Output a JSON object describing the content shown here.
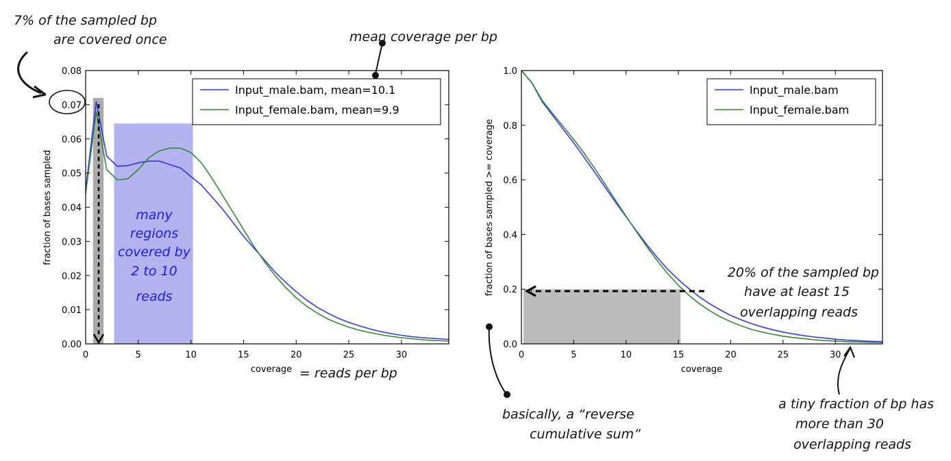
{
  "chart_data": [
    {
      "type": "line",
      "xlabel": "coverage",
      "ylabel": "fraction of bases sampled",
      "xlim": [
        0,
        34.5
      ],
      "ylim": [
        0,
        0.08
      ],
      "xticks": [
        "0",
        "5",
        "10",
        "15",
        "20",
        "25",
        "30"
      ],
      "yticks": [
        "0.00",
        "0.01",
        "0.02",
        "0.03",
        "0.04",
        "0.05",
        "0.06",
        "0.07",
        "0.08"
      ],
      "legend_position": "top-right",
      "series": [
        {
          "name": "Input_male.bam, mean=10.1",
          "color": "#3333ff",
          "x": [
            0,
            1,
            2,
            3,
            4,
            5,
            6,
            7,
            8,
            9,
            10,
            11,
            12,
            13,
            14,
            15,
            16,
            17,
            18,
            19,
            20,
            21,
            22,
            23,
            24,
            25,
            26,
            27,
            28,
            29,
            30,
            31,
            32,
            33,
            34.5
          ],
          "y": [
            0.045,
            0.071,
            0.055,
            0.052,
            0.0522,
            0.053,
            0.0535,
            0.0535,
            0.0525,
            0.0515,
            0.049,
            0.0465,
            0.043,
            0.0395,
            0.0355,
            0.0315,
            0.028,
            0.0245,
            0.021,
            0.018,
            0.0153,
            0.0128,
            0.0107,
            0.009,
            0.0075,
            0.0063,
            0.0053,
            0.0044,
            0.0036,
            0.003,
            0.0025,
            0.0021,
            0.0018,
            0.0016,
            0.0013
          ]
        },
        {
          "name": "Input_female.bam, mean=9.9",
          "color": "#2e8b2e",
          "x": [
            0,
            1,
            2,
            3,
            4,
            5,
            6,
            7,
            8,
            9,
            10,
            11,
            12,
            13,
            14,
            15,
            16,
            17,
            18,
            19,
            20,
            21,
            22,
            23,
            24,
            25,
            26,
            27,
            28,
            29,
            30,
            31,
            32,
            33,
            34.5
          ],
          "y": [
            0.044,
            0.068,
            0.051,
            0.048,
            0.0483,
            0.051,
            0.0545,
            0.0565,
            0.0573,
            0.0573,
            0.056,
            0.053,
            0.0485,
            0.0435,
            0.0385,
            0.0335,
            0.0285,
            0.024,
            0.02,
            0.0165,
            0.0135,
            0.011,
            0.009,
            0.0073,
            0.006,
            0.0049,
            0.004,
            0.0033,
            0.0027,
            0.0022,
            0.0018,
            0.0015,
            0.0012,
            0.001,
            0.0008
          ]
        }
      ],
      "highlights": [
        {
          "color": "#aaaaaa",
          "x_range": [
            0.7,
            1.7
          ],
          "y_range": [
            0,
            0.072
          ]
        },
        {
          "color": "#b3b3f0",
          "x_range": [
            2.7,
            10.2
          ],
          "y_range": [
            0,
            0.0645
          ]
        }
      ],
      "annotations": {
        "top_left": [
          "7% of the sampled bp",
          "are covered once"
        ],
        "mean_label": "mean coverage per bp",
        "blue_box": [
          "many",
          "regions",
          "covered by",
          "2 to 10",
          "reads"
        ],
        "xlabel_suffix": "= reads per bp"
      }
    },
    {
      "type": "line",
      "xlabel": "coverage",
      "ylabel": "fraction of bases sampled >= coverage",
      "xlim": [
        0,
        34.5
      ],
      "ylim": [
        0,
        1.0
      ],
      "xticks": [
        "0",
        "5",
        "10",
        "15",
        "20",
        "25",
        "30"
      ],
      "yticks": [
        "0.0",
        "0.2",
        "0.4",
        "0.6",
        "0.8",
        "1.0"
      ],
      "legend_position": "top-right",
      "series": [
        {
          "name": "Input_male.bam",
          "color": "#3333ff",
          "x": [
            0,
            1,
            2,
            3,
            4,
            5,
            6,
            7,
            8,
            9,
            10,
            11,
            12,
            13,
            14,
            15,
            16,
            17,
            18,
            19,
            20,
            21,
            22,
            23,
            24,
            25,
            26,
            27,
            28,
            29,
            30,
            31,
            32,
            33,
            34.5
          ],
          "y": [
            1.0,
            0.955,
            0.885,
            0.835,
            0.785,
            0.735,
            0.682,
            0.628,
            0.573,
            0.518,
            0.465,
            0.413,
            0.362,
            0.315,
            0.272,
            0.235,
            0.202,
            0.172,
            0.146,
            0.124,
            0.104,
            0.088,
            0.074,
            0.062,
            0.052,
            0.043,
            0.036,
            0.03,
            0.025,
            0.021,
            0.017,
            0.014,
            0.012,
            0.01,
            0.008
          ]
        },
        {
          "name": "Input_female.bam",
          "color": "#2e8b2e",
          "x": [
            0,
            1,
            2,
            3,
            4,
            5,
            6,
            7,
            8,
            9,
            10,
            11,
            12,
            13,
            14,
            15,
            16,
            17,
            18,
            19,
            20,
            21,
            22,
            23,
            24,
            25,
            26,
            27,
            28,
            29,
            30,
            31,
            32,
            33,
            34.5
          ],
          "y": [
            1.0,
            0.956,
            0.89,
            0.842,
            0.795,
            0.748,
            0.697,
            0.642,
            0.584,
            0.525,
            0.467,
            0.41,
            0.355,
            0.303,
            0.256,
            0.214,
            0.178,
            0.147,
            0.121,
            0.099,
            0.081,
            0.066,
            0.053,
            0.043,
            0.035,
            0.028,
            0.023,
            0.019,
            0.015,
            0.012,
            0.01,
            0.008,
            0.007,
            0.006,
            0.005
          ]
        }
      ],
      "highlights": [
        {
          "color": "#bbbbbb",
          "x_range": [
            0.2,
            15.2
          ],
          "y_range": [
            0,
            0.2
          ]
        }
      ],
      "annotations": {
        "right_note": [
          "20% of the sampled bp",
          "have at least 15",
          "overlapping reads"
        ],
        "bottom_left": [
          "basically, a “reverse",
          "cumulative sum”"
        ],
        "bottom_right": [
          "a tiny fraction of bp has",
          "more than 30",
          "overlapping reads"
        ]
      }
    }
  ]
}
